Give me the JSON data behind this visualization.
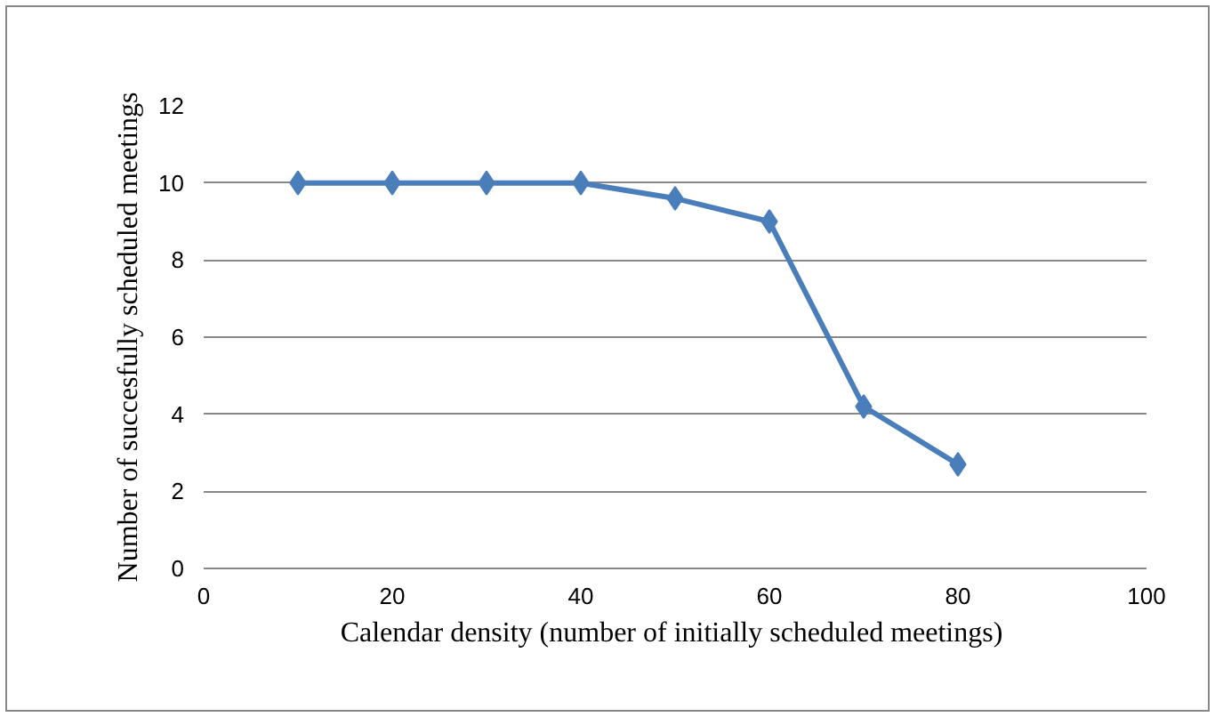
{
  "chart_data": {
    "type": "line",
    "xlabel": "Calendar density (number of initially  scheduled meetings)",
    "ylabel": "Number of succesfully scheduled meetings",
    "x": [
      10,
      20,
      30,
      40,
      50,
      60,
      70,
      80
    ],
    "series": [
      {
        "color": "#4a7ebb",
        "values": [
          10,
          10,
          10,
          10,
          9.6,
          9,
          4.2,
          2.7
        ]
      }
    ],
    "xlim": [
      0,
      100
    ],
    "xticks": [
      0,
      20,
      40,
      60,
      80,
      100
    ],
    "ylim": [
      0,
      12
    ],
    "yticks": [
      0,
      2,
      4,
      6,
      8,
      10,
      12
    ],
    "grid": "y",
    "marker": "diamond",
    "line_style": "solid"
  }
}
